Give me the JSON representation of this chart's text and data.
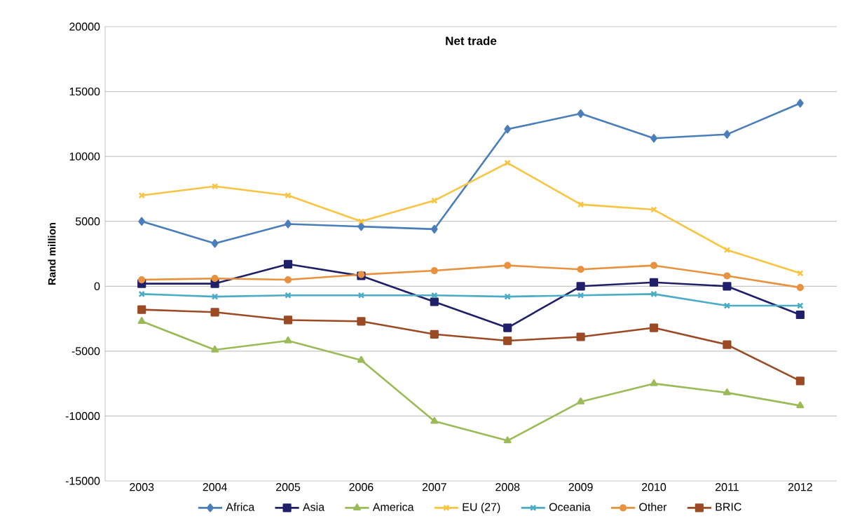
{
  "chart_data": {
    "type": "line",
    "title": "Net trade",
    "ylabel": "Rand million",
    "categories": [
      "2003",
      "2004",
      "2005",
      "2006",
      "2007",
      "2008",
      "2009",
      "2010",
      "2011",
      "2012"
    ],
    "ylim": [
      -15000,
      20000
    ],
    "yticks": [
      -15000,
      -10000,
      -5000,
      0,
      5000,
      10000,
      15000,
      20000
    ],
    "grid": "y",
    "legend": "bottom",
    "series": [
      {
        "name": "Africa",
        "color": "#4a7ebb",
        "marker": "diamond",
        "values": [
          5000,
          3300,
          4800,
          4600,
          4400,
          12100,
          13300,
          11400,
          11700,
          14100
        ]
      },
      {
        "name": "Asia",
        "color": "#20206a",
        "marker": "square",
        "values": [
          200,
          200,
          1700,
          800,
          -1200,
          -3200,
          0,
          300,
          0,
          -2200
        ]
      },
      {
        "name": "America",
        "color": "#9bbb59",
        "marker": "triangle",
        "values": [
          -2700,
          -4900,
          -4200,
          -5700,
          -10400,
          -11900,
          -8900,
          -7500,
          -8200,
          -9200
        ]
      },
      {
        "name": "EU (27)",
        "color": "#fac443",
        "marker": "cross",
        "values": [
          7000,
          7700,
          7000,
          5000,
          6600,
          9500,
          6300,
          5900,
          2800,
          1000
        ]
      },
      {
        "name": "Oceania",
        "color": "#4bacc6",
        "marker": "cross",
        "values": [
          -600,
          -800,
          -700,
          -700,
          -700,
          -800,
          -700,
          -600,
          -1500,
          -1500
        ]
      },
      {
        "name": "Other",
        "color": "#e8913f",
        "marker": "circle",
        "values": [
          500,
          600,
          500,
          900,
          1200,
          1600,
          1300,
          1600,
          800,
          -100
        ]
      },
      {
        "name": "BRIC",
        "color": "#9c4a24",
        "marker": "square",
        "values": [
          -1800,
          -2000,
          -2600,
          -2700,
          -3700,
          -4200,
          -3900,
          -3200,
          -4500,
          -7300
        ]
      }
    ]
  }
}
